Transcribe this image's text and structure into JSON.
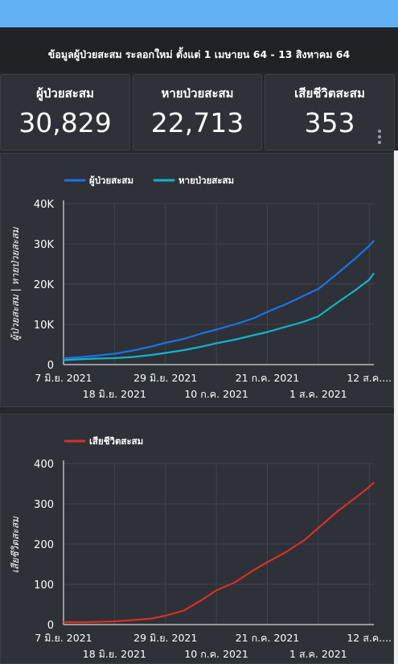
{
  "header": {
    "title": "ข้อมูลผู้ป่วยสะสม ระลอกใหม่  ตั้งแต่ 1 เมษายน 64 - 13 สิงหาคม 64"
  },
  "cards": [
    {
      "label": "ผู้ป่วยสะสม",
      "value": "30,829"
    },
    {
      "label": "หายป่วยสะสม",
      "value": "22,713"
    },
    {
      "label": "เสียชีวิตสะสม",
      "value": "353"
    }
  ],
  "colors": {
    "cases": "#1a73e8",
    "recovered": "#12b5cb",
    "deaths": "#d93025",
    "grid": "#40444c",
    "axis": "#ffffff"
  },
  "chart_data": [
    {
      "type": "line",
      "ylabel": "ผู้ป่วยสะสม  |  หายป่วยสะสม",
      "ylim": [
        0,
        40000
      ],
      "yticks": [
        "0",
        "10K",
        "20K",
        "30K",
        "40K"
      ],
      "xlim": [
        "2021-06-07",
        "2021-08-13"
      ],
      "xticks_top": [
        {
          "date": "2021-06-07",
          "label": "7 มิ.ย. 2021"
        },
        {
          "date": "2021-06-29",
          "label": "29 มิ.ย. 2021"
        },
        {
          "date": "2021-07-21",
          "label": "21 ก.ค. 2021"
        },
        {
          "date": "2021-08-12",
          "label": "12 ส.ค...."
        }
      ],
      "xticks_bottom": [
        {
          "date": "2021-06-18",
          "label": "18 มิ.ย. 2021"
        },
        {
          "date": "2021-07-10",
          "label": "10 ก.ค. 2021"
        },
        {
          "date": "2021-08-01",
          "label": "1 ส.ค. 2021"
        }
      ],
      "legend_position": "top-left",
      "series": [
        {
          "name": "ผู้ป่วยสะสม",
          "color": "#1a73e8",
          "points": [
            [
              "2021-06-07",
              1600
            ],
            [
              "2021-06-10",
              1800
            ],
            [
              "2021-06-14",
              2200
            ],
            [
              "2021-06-18",
              2700
            ],
            [
              "2021-06-22",
              3500
            ],
            [
              "2021-06-26",
              4500
            ],
            [
              "2021-06-29",
              5400
            ],
            [
              "2021-07-03",
              6400
            ],
            [
              "2021-07-07",
              7800
            ],
            [
              "2021-07-10",
              8700
            ],
            [
              "2021-07-14",
              10000
            ],
            [
              "2021-07-18",
              11500
            ],
            [
              "2021-07-21",
              13100
            ],
            [
              "2021-07-25",
              15000
            ],
            [
              "2021-07-29",
              17200
            ],
            [
              "2021-08-01",
              18800
            ],
            [
              "2021-08-05",
              22500
            ],
            [
              "2021-08-09",
              26400
            ],
            [
              "2021-08-12",
              29500
            ],
            [
              "2021-08-13",
              30829
            ]
          ]
        },
        {
          "name": "หายป่วยสะสม",
          "color": "#12b5cb",
          "points": [
            [
              "2021-06-07",
              1100
            ],
            [
              "2021-06-10",
              1300
            ],
            [
              "2021-06-14",
              1500
            ],
            [
              "2021-06-18",
              1600
            ],
            [
              "2021-06-22",
              1900
            ],
            [
              "2021-06-26",
              2400
            ],
            [
              "2021-06-29",
              2900
            ],
            [
              "2021-07-03",
              3600
            ],
            [
              "2021-07-07",
              4500
            ],
            [
              "2021-07-10",
              5300
            ],
            [
              "2021-07-14",
              6200
            ],
            [
              "2021-07-18",
              7300
            ],
            [
              "2021-07-21",
              8100
            ],
            [
              "2021-07-25",
              9400
            ],
            [
              "2021-07-29",
              10700
            ],
            [
              "2021-08-01",
              12000
            ],
            [
              "2021-08-05",
              15300
            ],
            [
              "2021-08-09",
              18500
            ],
            [
              "2021-08-12",
              21100
            ],
            [
              "2021-08-13",
              22713
            ]
          ]
        }
      ]
    },
    {
      "type": "line",
      "ylabel": "เสียชีวิตสะสม",
      "ylim": [
        0,
        400
      ],
      "yticks": [
        "0",
        "100",
        "200",
        "300",
        "400"
      ],
      "xlim": [
        "2021-06-07",
        "2021-08-13"
      ],
      "xticks_top": [
        {
          "date": "2021-06-07",
          "label": "7 มิ.ย. 2021"
        },
        {
          "date": "2021-06-29",
          "label": "29 มิ.ย. 2021"
        },
        {
          "date": "2021-07-21",
          "label": "21 ก.ค. 2021"
        },
        {
          "date": "2021-08-12",
          "label": "12 ส.ค...."
        }
      ],
      "xticks_bottom": [
        {
          "date": "2021-06-18",
          "label": "18 มิ.ย. 2021"
        },
        {
          "date": "2021-07-10",
          "label": "10 ก.ค. 2021"
        },
        {
          "date": "2021-08-01",
          "label": "1 ส.ค. 2021"
        }
      ],
      "legend_position": "top-left",
      "series": [
        {
          "name": "เสียชีวิตสะสม",
          "color": "#d93025",
          "points": [
            [
              "2021-06-07",
              6
            ],
            [
              "2021-06-12",
              6
            ],
            [
              "2021-06-18",
              8
            ],
            [
              "2021-06-22",
              11
            ],
            [
              "2021-06-26",
              15
            ],
            [
              "2021-06-29",
              22
            ],
            [
              "2021-07-03",
              35
            ],
            [
              "2021-07-07",
              62
            ],
            [
              "2021-07-10",
              85
            ],
            [
              "2021-07-14",
              105
            ],
            [
              "2021-07-18",
              135
            ],
            [
              "2021-07-21",
              155
            ],
            [
              "2021-07-25",
              180
            ],
            [
              "2021-07-29",
              210
            ],
            [
              "2021-08-01",
              240
            ],
            [
              "2021-08-05",
              280
            ],
            [
              "2021-08-09",
              315
            ],
            [
              "2021-08-12",
              342
            ],
            [
              "2021-08-13",
              353
            ]
          ]
        }
      ]
    }
  ]
}
